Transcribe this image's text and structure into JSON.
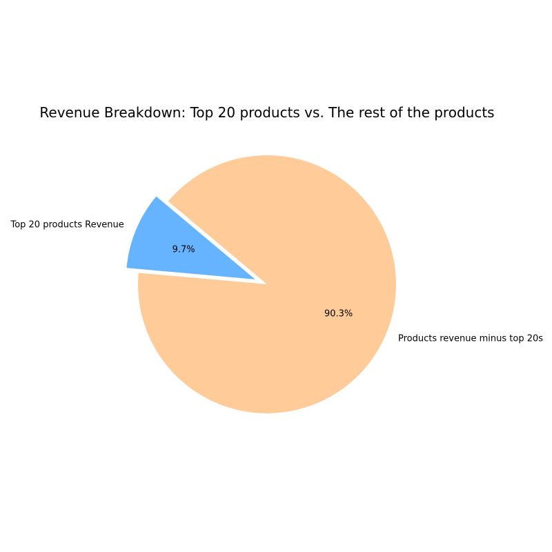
{
  "chart_data": {
    "type": "pie",
    "title": "Revenue Breakdown: Top 20 products vs. The rest of the products",
    "slices": [
      {
        "label": "Top 20 products Revenue",
        "value": 9.7,
        "pct_label": "9.7%",
        "color": "#66b3ff",
        "exploded": true
      },
      {
        "label": "Products revenue minus top 20s",
        "value": 90.3,
        "pct_label": "90.3%",
        "color": "#ffcc99",
        "exploded": false
      }
    ],
    "start_angle_deg": 140,
    "direction": "counterclockwise",
    "legend": "none"
  }
}
